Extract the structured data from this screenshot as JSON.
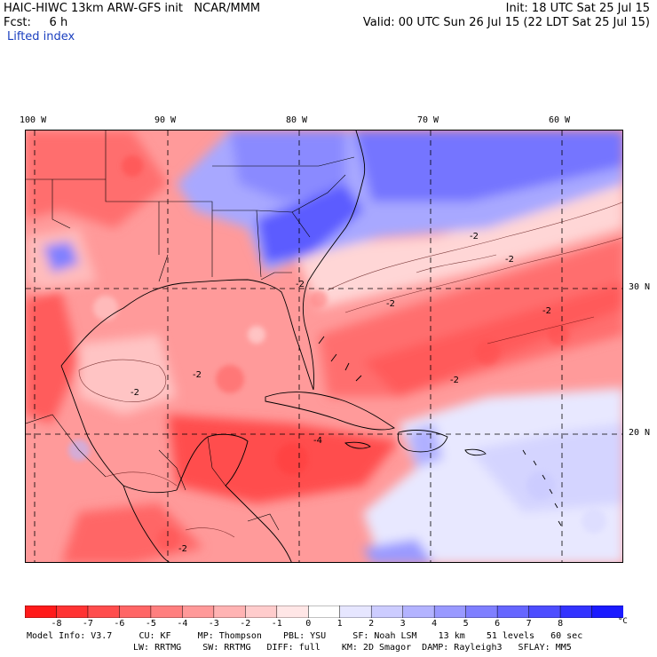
{
  "header": {
    "model": "HAIC-HIWC 13km ARW-GFS init",
    "org": "NCAR/MMM",
    "fcst_label": "Fcst:",
    "fcst_value": "6 h",
    "field": "Lifted index",
    "init": "Init: 18 UTC Sat 25 Jul 15",
    "valid": "Valid: 00 UTC Sun 26 Jul 15 (22 LDT Sat 25 Jul 15)"
  },
  "axes": {
    "longitudes": [
      "100 W",
      "90 W",
      "80 W",
      "70 W",
      "60 W"
    ],
    "latitudes": [
      "30 N",
      "20 N"
    ]
  },
  "contour_labels": [
    "-2",
    "-2",
    "-2",
    "-2",
    "-2",
    "-2",
    "-2",
    "-4",
    "-2",
    "-2"
  ],
  "colorbar": {
    "ticks": [
      "-8",
      "-7",
      "-6",
      "-5",
      "-4",
      "-3",
      "-2",
      "-1",
      "0",
      "1",
      "2",
      "3",
      "4",
      "5",
      "6",
      "7",
      "8"
    ],
    "unit": "°C",
    "colors": [
      "#ff1a1a",
      "#ff3333",
      "#ff4d4d",
      "#ff6666",
      "#ff7f7f",
      "#ff9999",
      "#ffb3b3",
      "#ffcccc",
      "#ffe6e6",
      "#ffffff",
      "#e6e6ff",
      "#ccccff",
      "#b3b3ff",
      "#9999ff",
      "#7f7fff",
      "#6666ff",
      "#4d4dff",
      "#3333ff",
      "#1a1aff"
    ]
  },
  "footer": {
    "line1": [
      "Model Info: V3.7",
      "CU: KF",
      "MP: Thompson",
      "PBL: YSU",
      "SF: Noah LSM",
      "13 km",
      "51 levels",
      "60 sec"
    ],
    "line2": [
      "LW: RRTMG",
      "SW: RRTMG",
      "DIFF: full",
      "KM: 2D Smagor",
      "DAMP: Rayleigh3",
      "SFLAY: MM5"
    ]
  }
}
